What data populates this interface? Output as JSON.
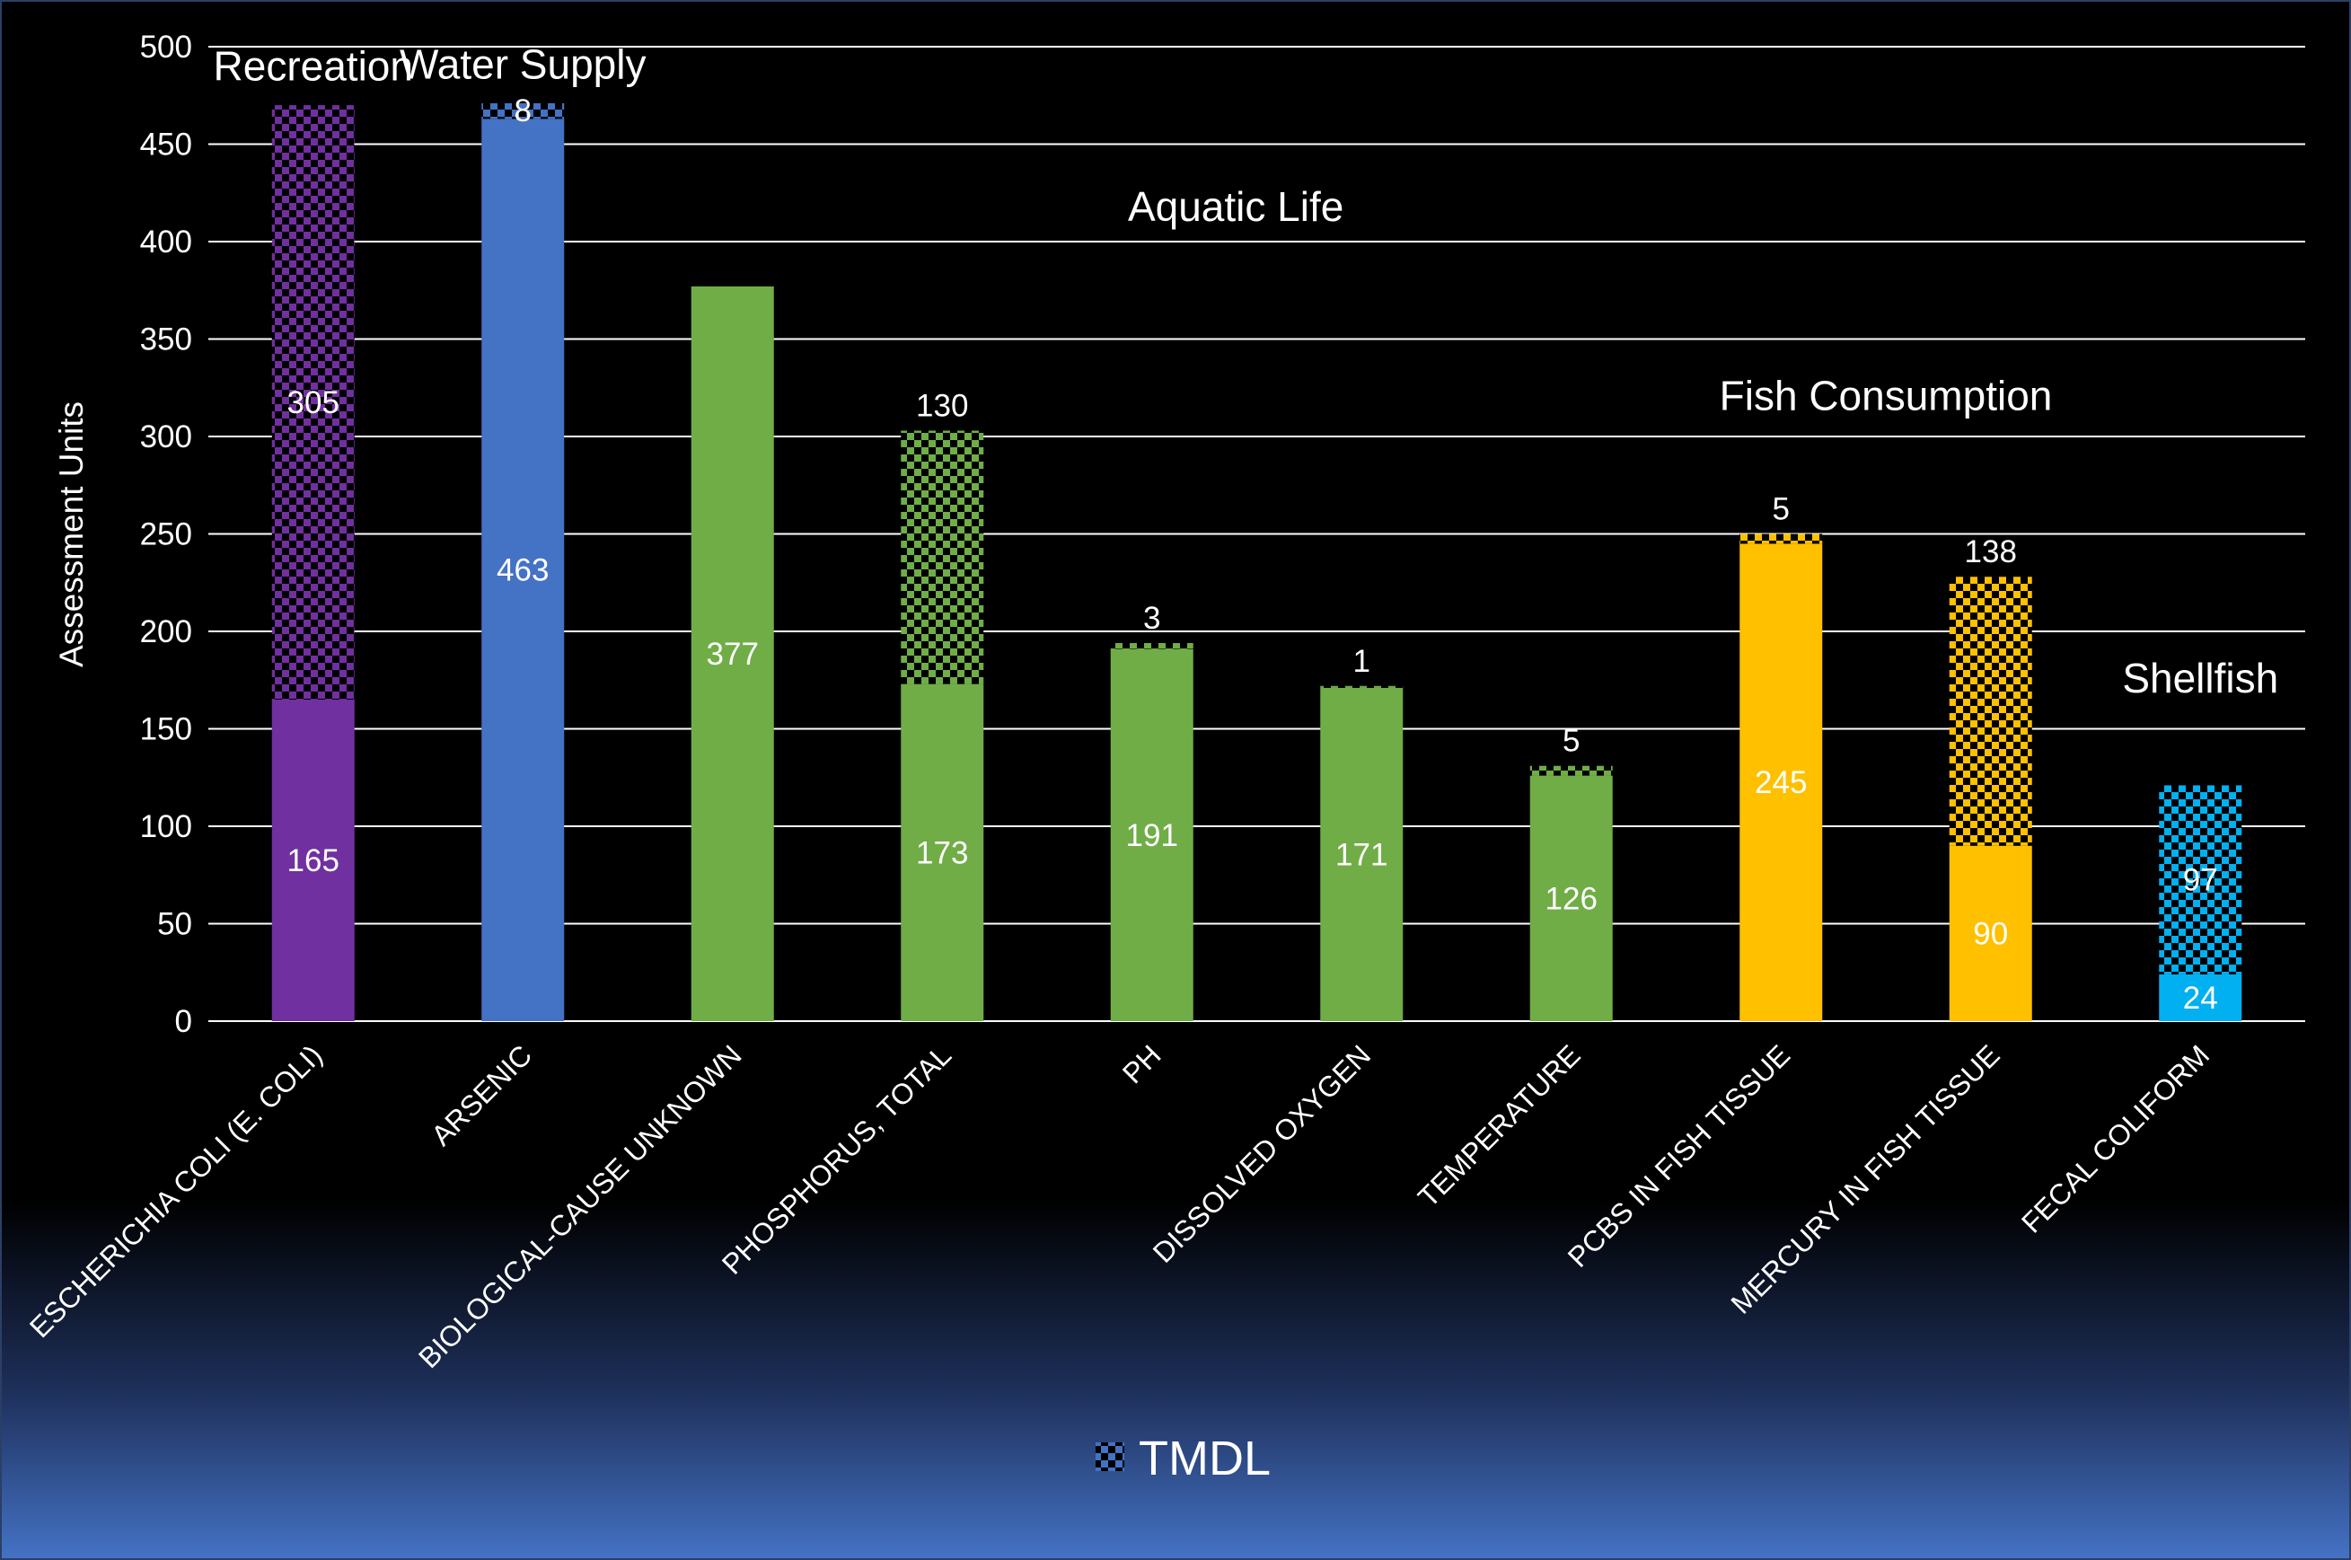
{
  "chart_data": {
    "type": "bar",
    "stacked": true,
    "ylabel": "Assessment Units",
    "ylim": [
      0,
      500
    ],
    "yticks": [
      0,
      50,
      100,
      150,
      200,
      250,
      300,
      350,
      400,
      450,
      500
    ],
    "grid": true,
    "legend": {
      "placement": "bottom-center",
      "entries": [
        "TMDL"
      ]
    },
    "categories": [
      "ESCHERICHIA COLI (E. COLI)",
      "ARSENIC",
      "BIOLOGICAL-CAUSE UNKNOWN",
      "PHOSPHORUS, TOTAL",
      "PH",
      "DISSOLVED OXYGEN",
      "TEMPERATURE",
      "PCBS IN FISH TISSUE",
      "MERCURY IN FISH TISSUE",
      "FECAL COLIFORM"
    ],
    "series": [
      {
        "values": [
          165,
          463,
          377,
          173,
          191,
          171,
          126,
          245,
          90,
          24
        ]
      },
      {
        "name": "TMDL",
        "pattern": "checkerboard",
        "values": [
          305,
          8,
          0,
          130,
          3,
          1,
          5,
          5,
          138,
          97
        ]
      }
    ],
    "bar_colors": [
      "#7030a0",
      "#4472c4",
      "#70ad47",
      "#70ad47",
      "#70ad47",
      "#70ad47",
      "#70ad47",
      "#ffc000",
      "#ffc000",
      "#00b0f0"
    ],
    "group_annotations": [
      {
        "text": "Recreation",
        "category": 0,
        "y": 490
      },
      {
        "text": "Water Supply",
        "category": 1,
        "y": 491
      },
      {
        "text": "Aquatic Life",
        "category": 4.4,
        "y": 418
      },
      {
        "text": "Fish Consumption",
        "category": 7.5,
        "y": 321
      },
      {
        "text": "Shellfish",
        "category": 9,
        "y": 176
      }
    ]
  }
}
